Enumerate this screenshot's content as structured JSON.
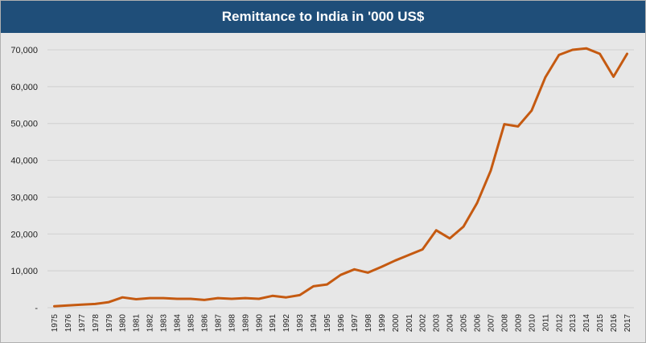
{
  "chart_data": {
    "type": "line",
    "title": "Remittance to India in '000 US$",
    "xlabel": "",
    "ylabel": "",
    "ylim": [
      0,
      70000
    ],
    "y_ticks": [
      {
        "value": 0,
        "label": "-"
      },
      {
        "value": 10000,
        "label": "10,000"
      },
      {
        "value": 20000,
        "label": "20,000"
      },
      {
        "value": 30000,
        "label": "30,000"
      },
      {
        "value": 40000,
        "label": "40,000"
      },
      {
        "value": 50000,
        "label": "50,000"
      },
      {
        "value": 60000,
        "label": "60,000"
      },
      {
        "value": 70000,
        "label": "70,000"
      }
    ],
    "grid": true,
    "legend": "none",
    "line_color": "#c55a11",
    "background_color": "#e7e7e7",
    "title_bar_color": "#1f4e79",
    "x": [
      "1975",
      "1976",
      "1977",
      "1978",
      "1979",
      "1980",
      "1981",
      "1982",
      "1983",
      "1984",
      "1985",
      "1986",
      "1987",
      "1988",
      "1989",
      "1990",
      "1991",
      "1992",
      "1993",
      "1994",
      "1995",
      "1996",
      "1997",
      "1998",
      "1999",
      "2000",
      "2001",
      "2002",
      "2003",
      "2004",
      "2005",
      "2006",
      "2007",
      "2008",
      "2009",
      "2010",
      "2011",
      "2012",
      "2013",
      "2014",
      "2015",
      "2016",
      "2017"
    ],
    "series": [
      {
        "values": [
          400,
          600,
          800,
          1000,
          1500,
          2800,
          2300,
          2600,
          2600,
          2400,
          2400,
          2100,
          2600,
          2400,
          2600,
          2400,
          3200,
          2800,
          3400,
          5800,
          6300,
          8900,
          10400,
          9500,
          11100,
          12800,
          14300,
          15800,
          21000,
          18800,
          22000,
          28400,
          37200,
          49800,
          49200,
          53500,
          62500,
          68600,
          70000,
          70400,
          68900,
          62700,
          68900
        ]
      }
    ]
  }
}
